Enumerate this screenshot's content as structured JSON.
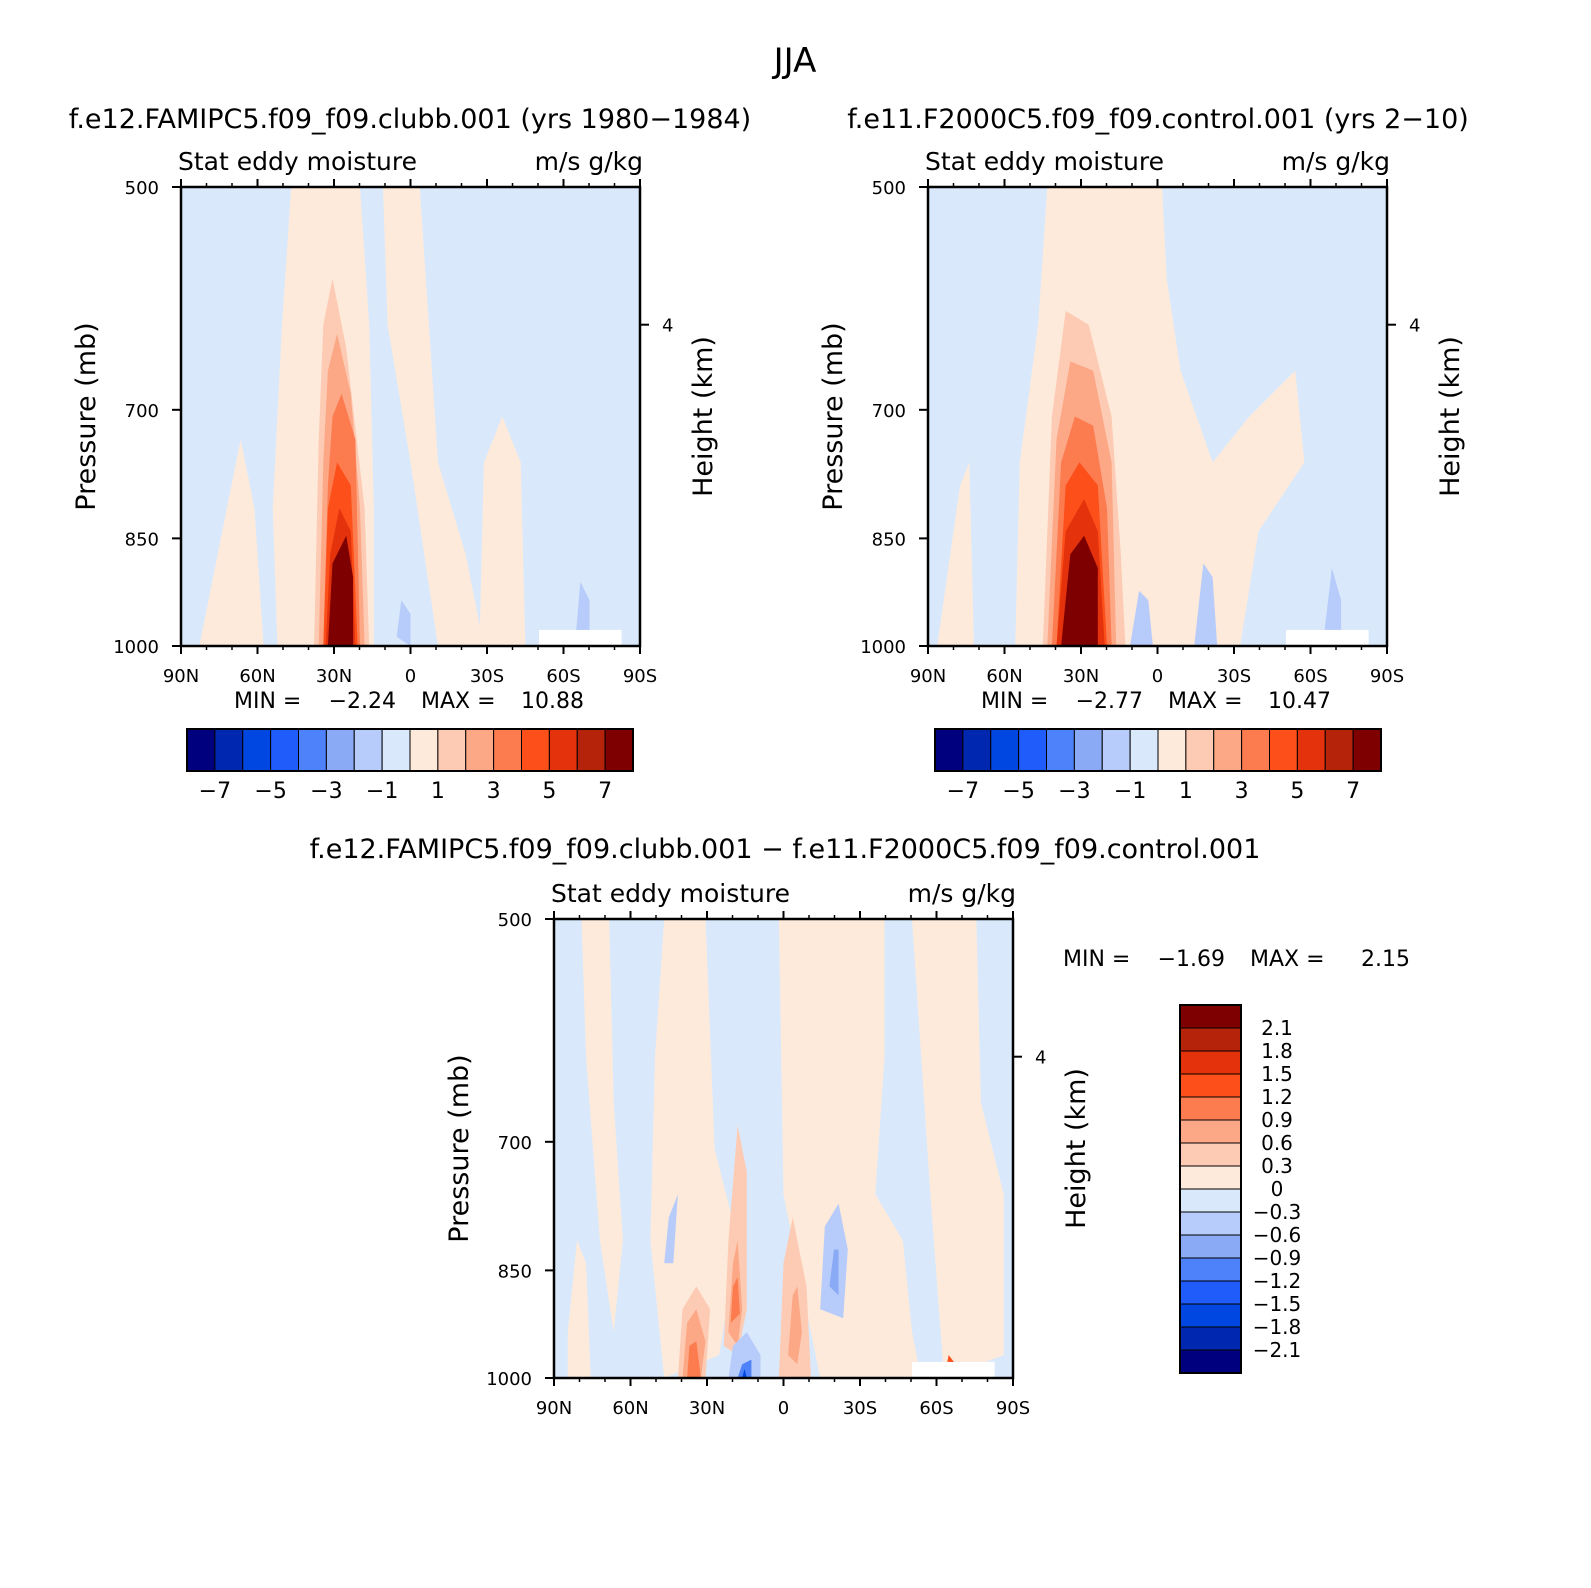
{
  "figure": {
    "title": "JJA"
  },
  "colors": {
    "full_scale": [
      "#00007f",
      "#0027b0",
      "#0046e0",
      "#1f5cfa",
      "#4d82fa",
      "#8aaaf5",
      "#b7ccfa",
      "#d9e9fb",
      "#fdeadb",
      "#fdcbb3",
      "#fca886",
      "#fc7b4f",
      "#fc4f19",
      "#e3320c",
      "#b6230b",
      "#7f0000"
    ],
    "diff_scale": [
      "#00007f",
      "#0027b0",
      "#0046e0",
      "#1f5cfa",
      "#4d82fa",
      "#8aaaf5",
      "#b7ccfa",
      "#d9e9fb",
      "#fdeadb",
      "#fdcbb3",
      "#fca886",
      "#fc7b4f",
      "#fc4f19",
      "#e3320c",
      "#b6230b",
      "#7f0000"
    ]
  },
  "chart_data": [
    {
      "type": "heatmap",
      "id": "panel-clubb",
      "title": "f.e12.FAMIPC5.f09_f09.clubb.001 (yrs 1980-1984)",
      "subtitle_left": "Stat eddy moisture",
      "subtitle_right": "m/s g/kg",
      "ylabel": "Pressure (mb)",
      "ylabel_right": "Height (km)",
      "x_ticks": [
        "90N",
        "60N",
        "30N",
        "0",
        "30S",
        "60S",
        "90S"
      ],
      "y_ticks": [
        "500",
        "700",
        "850",
        "1000"
      ],
      "y_right_ticks": [
        "4"
      ],
      "min_label": "MIN =",
      "min_value": "-2.24",
      "max_label": "MAX =",
      "max_value": "10.88",
      "colorbar_labels": [
        "-7",
        "-5",
        "-3",
        "-1",
        "1",
        "3",
        "5",
        "7"
      ],
      "grid": false
    },
    {
      "type": "heatmap",
      "id": "panel-control",
      "title": "f.e11.F2000C5.f09_f09.control.001 (yrs 2-10)",
      "subtitle_left": "Stat eddy moisture",
      "subtitle_right": "m/s g/kg",
      "ylabel": "Pressure (mb)",
      "ylabel_right": "Height (km)",
      "x_ticks": [
        "90N",
        "60N",
        "30N",
        "0",
        "30S",
        "60S",
        "90S"
      ],
      "y_ticks": [
        "500",
        "700",
        "850",
        "1000"
      ],
      "y_right_ticks": [
        "4"
      ],
      "min_label": "MIN =",
      "min_value": "-2.77",
      "max_label": "MAX =",
      "max_value": "10.47",
      "colorbar_labels": [
        "-7",
        "-5",
        "-3",
        "-1",
        "1",
        "3",
        "5",
        "7"
      ],
      "grid": false
    },
    {
      "type": "heatmap",
      "id": "panel-diff",
      "title": "f.e12.FAMIPC5.f09_f09.clubb.001 - f.e11.F2000C5.f09_f09.control.001",
      "subtitle_left": "Stat eddy moisture",
      "subtitle_right": "m/s g/kg",
      "ylabel": "Pressure (mb)",
      "ylabel_right": "Height (km)",
      "x_ticks": [
        "90N",
        "60N",
        "30N",
        "0",
        "30S",
        "60S",
        "90S"
      ],
      "y_ticks": [
        "500",
        "700",
        "850",
        "1000"
      ],
      "y_right_ticks": [
        "4"
      ],
      "min_label": "MIN =",
      "min_value": "-1.69",
      "max_label": "MAX =",
      "max_value": "2.15",
      "colorbar_labels": [
        "2.1",
        "1.8",
        "1.5",
        "1.2",
        "0.9",
        "0.6",
        "0.3",
        "0",
        "-0.3",
        "-0.6",
        "-0.9",
        "-1.2",
        "-1.5",
        "-1.8",
        "-2.1"
      ],
      "grid": false
    }
  ]
}
